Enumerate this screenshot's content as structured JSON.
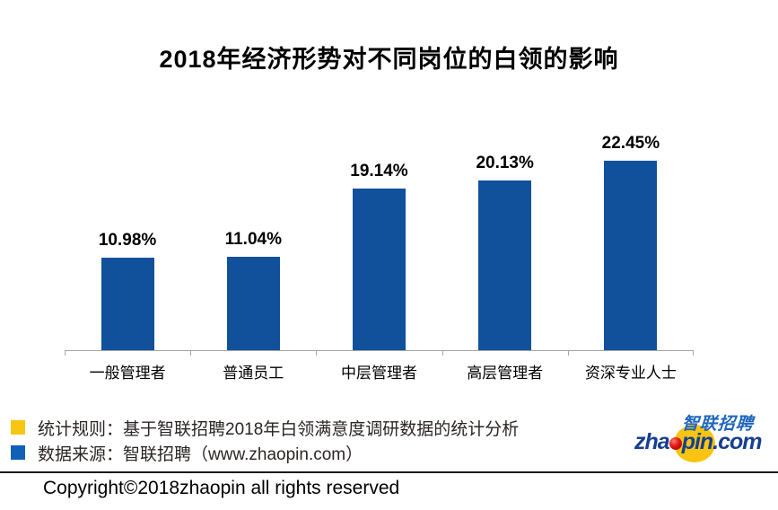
{
  "title": "2018年经济形势对不同岗位的白领的影响",
  "chart_data": {
    "type": "bar",
    "title": "2018年经济形势对不同岗位的白领的影响",
    "categories": [
      "一般管理者",
      "普通员工",
      "中层管理者",
      "高层管理者",
      "资深专业人士"
    ],
    "values": [
      10.98,
      11.04,
      19.14,
      20.13,
      22.45
    ],
    "value_labels": [
      "10.98%",
      "11.04%",
      "19.14%",
      "20.13%",
      "22.45%"
    ],
    "xlabel": "",
    "ylabel": "",
    "ylim": [
      0,
      25
    ],
    "grid": false,
    "legend_position": "none",
    "bar_color": "#11519b",
    "axis_color": "#a6a6a6"
  },
  "legend": {
    "items": [
      {
        "swatch_color": "#f8c513",
        "swatch_name": "yellow-swatch",
        "label": "统计规则：基于智联招聘2018年白领满意度调研数据的统计分析"
      },
      {
        "swatch_color": "#1160b8",
        "swatch_name": "blue-swatch",
        "label": "数据来源：智联招聘（www.zhaopin.com）"
      }
    ]
  },
  "logo": {
    "cn_text": "智联招聘",
    "latin_prefix": "zha",
    "latin_suffix": "pin.com",
    "dot_color": "#d01010",
    "ellipse_color": "#f9c412"
  },
  "footer": {
    "copyright": "Copyright©2018zhaopin all rights reserved"
  }
}
